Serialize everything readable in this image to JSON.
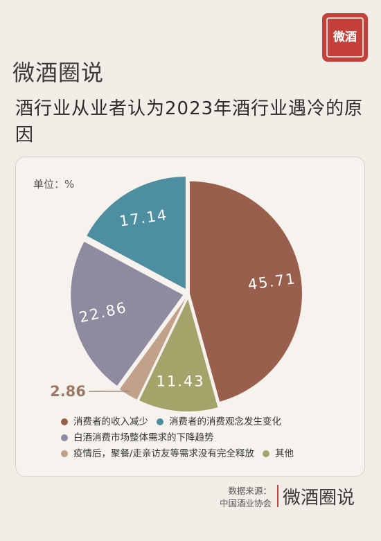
{
  "stamp": {
    "text": "微酒"
  },
  "brand": {
    "name": "微酒圈说"
  },
  "title": "酒行业从业者认为2023年酒行业遇冷的原因",
  "unit_label": "单位：%",
  "chart_data": {
    "type": "pie",
    "unit": "%",
    "categories": [
      "消费者的收入减少",
      "消费者的消费观念发生变化",
      "白酒消费市场整体需求的下降趋势",
      "疫情后，聚餐/走亲访友等需求没有完全释放",
      "其他"
    ],
    "values": [
      45.71,
      17.14,
      22.86,
      2.86,
      11.43
    ],
    "value_labels": [
      "45.71",
      "17.14",
      "22.86",
      "2.86",
      "11.43"
    ],
    "colors": [
      "#9a5f4c",
      "#4e8ea1",
      "#8e8aa0",
      "#c1a18a",
      "#a3a36a"
    ],
    "legend_position": "bottom"
  },
  "footer": {
    "source_label": "数据来源：",
    "source_name": "中国酒业协会",
    "brand": "微酒圈说"
  }
}
